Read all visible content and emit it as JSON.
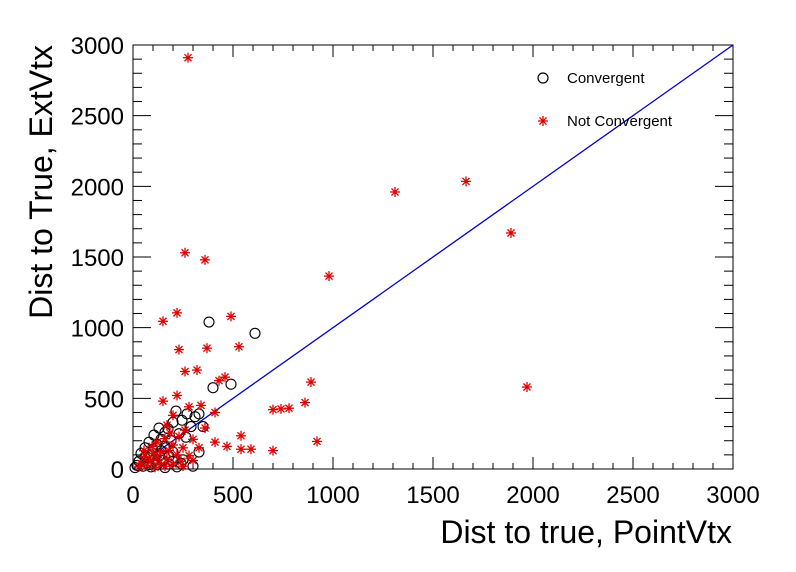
{
  "chart_data": {
    "type": "scatter",
    "xlabel": "Dist to true, PointVtx",
    "ylabel": "Dist to True, ExtVtx",
    "xlim": [
      0,
      3000
    ],
    "ylim": [
      0,
      3000
    ],
    "x_ticks": [
      "0",
      "500",
      "1000",
      "1500",
      "2000",
      "2500",
      "3000"
    ],
    "y_ticks": [
      "0",
      "500",
      "1000",
      "1500",
      "2000",
      "2500",
      "3000"
    ],
    "grid": false,
    "legend_position": "top-right",
    "reference_line": {
      "type": "diagonal",
      "from": [
        0,
        0
      ],
      "to": [
        3000,
        3000
      ],
      "color": "#0000cc"
    },
    "series": [
      {
        "name": "Convergent",
        "marker": "open-circle",
        "color": "#000000",
        "points": [
          [
            380,
            1040
          ],
          [
            610,
            960
          ],
          [
            400,
            575
          ],
          [
            490,
            600
          ],
          [
            215,
            410
          ],
          [
            270,
            390
          ],
          [
            330,
            390
          ],
          [
            310,
            370
          ],
          [
            245,
            345
          ],
          [
            200,
            330
          ],
          [
            350,
            300
          ],
          [
            290,
            300
          ],
          [
            130,
            290
          ],
          [
            175,
            285
          ],
          [
            160,
            260
          ],
          [
            230,
            250
          ],
          [
            105,
            240
          ],
          [
            265,
            225
          ],
          [
            140,
            210
          ],
          [
            190,
            200
          ],
          [
            80,
            190
          ],
          [
            120,
            175
          ],
          [
            160,
            160
          ],
          [
            60,
            150
          ],
          [
            100,
            140
          ],
          [
            140,
            130
          ],
          [
            200,
            120
          ],
          [
            330,
            120
          ],
          [
            40,
            110
          ],
          [
            90,
            100
          ],
          [
            130,
            95
          ],
          [
            180,
            90
          ],
          [
            60,
            80
          ],
          [
            110,
            70
          ],
          [
            150,
            60
          ],
          [
            200,
            55
          ],
          [
            30,
            55
          ],
          [
            70,
            45
          ],
          [
            240,
            40
          ],
          [
            120,
            30
          ],
          [
            20,
            25
          ],
          [
            50,
            20
          ],
          [
            90,
            15
          ],
          [
            160,
            10
          ],
          [
            220,
            15
          ],
          [
            10,
            10
          ],
          [
            300,
            20
          ],
          [
            180,
            35
          ],
          [
            250,
            65
          ],
          [
            80,
            30
          ]
        ]
      },
      {
        "name": "Not Convergent",
        "marker": "asterisk",
        "color": "#e00000",
        "points": [
          [
            275,
            2910
          ],
          [
            1310,
            1960
          ],
          [
            1665,
            2035
          ],
          [
            1890,
            1670
          ],
          [
            980,
            1365
          ],
          [
            260,
            1530
          ],
          [
            360,
            1480
          ],
          [
            220,
            1105
          ],
          [
            150,
            1045
          ],
          [
            490,
            1080
          ],
          [
            230,
            845
          ],
          [
            370,
            855
          ],
          [
            530,
            865
          ],
          [
            260,
            690
          ],
          [
            320,
            700
          ],
          [
            460,
            650
          ],
          [
            430,
            625
          ],
          [
            890,
            615
          ],
          [
            1970,
            580
          ],
          [
            860,
            470
          ],
          [
            700,
            420
          ],
          [
            740,
            425
          ],
          [
            780,
            430
          ],
          [
            340,
            450
          ],
          [
            220,
            520
          ],
          [
            150,
            480
          ],
          [
            280,
            440
          ],
          [
            410,
            400
          ],
          [
            200,
            380
          ],
          [
            170,
            310
          ],
          [
            360,
            290
          ],
          [
            260,
            275
          ],
          [
            540,
            235
          ],
          [
            920,
            195
          ],
          [
            410,
            190
          ],
          [
            470,
            160
          ],
          [
            330,
            150
          ],
          [
            540,
            140
          ],
          [
            590,
            140
          ],
          [
            700,
            130
          ],
          [
            230,
            230
          ],
          [
            300,
            210
          ],
          [
            160,
            215
          ],
          [
            120,
            190
          ],
          [
            200,
            170
          ],
          [
            250,
            150
          ],
          [
            180,
            130
          ],
          [
            140,
            120
          ],
          [
            100,
            110
          ],
          [
            220,
            100
          ],
          [
            280,
            95
          ],
          [
            60,
            90
          ],
          [
            120,
            80
          ],
          [
            170,
            70
          ],
          [
            90,
            60
          ],
          [
            240,
            55
          ],
          [
            40,
            40
          ],
          [
            130,
            40
          ],
          [
            200,
            35
          ],
          [
            70,
            25
          ],
          [
            160,
            20
          ],
          [
            30,
            15
          ],
          [
            110,
            12
          ],
          [
            250,
            20
          ],
          [
            300,
            60
          ],
          [
            185,
            255
          ],
          [
            95,
            160
          ],
          [
            55,
            130
          ]
        ]
      }
    ]
  }
}
